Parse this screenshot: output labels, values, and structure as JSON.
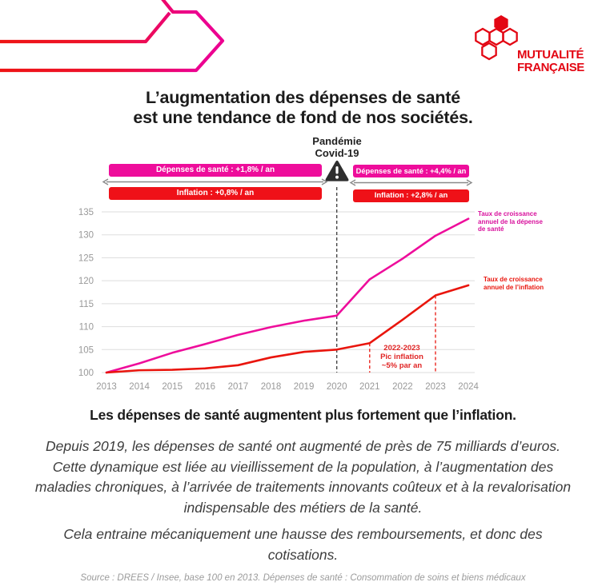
{
  "logo": {
    "line1": "MUTUALITÉ",
    "line2": "FRANÇAISE",
    "brand_color": "#E30613"
  },
  "title": {
    "line1": "L’augmentation des dépenses de santé",
    "line2": "est une tendance de fond de nos sociétés."
  },
  "chart": {
    "pandemic": [
      "Pandémie",
      "Covid-19"
    ],
    "banners": {
      "left_top": "Dépenses de santé : +1,8% / an",
      "left_bottom": "Inflation : +0,8% / an",
      "right_top": "Dépenses de santé : +4,4% / an",
      "right_bottom": "Inflation : +2,8% / an"
    },
    "labels": {
      "sante": [
        "Taux de croissance",
        "annuel de la dépense",
        "de santé"
      ],
      "inflation": [
        "Taux de croissance",
        "annuel de l’inflation"
      ]
    },
    "annotation": [
      "2022-2023",
      "Pic inflation",
      "~5% par an"
    ]
  },
  "chart_data": {
    "type": "line",
    "x": [
      2013,
      2014,
      2015,
      2016,
      2017,
      2018,
      2019,
      2020,
      2021,
      2022,
      2023,
      2024
    ],
    "series": [
      {
        "name": "Taux de croissance annuel de la dépense de santé",
        "color": "#EE0D9B",
        "values": [
          100,
          102,
          104.3,
          106.2,
          108.2,
          109.9,
          111.3,
          112.4,
          120.3,
          124.8,
          129.8,
          133.5
        ]
      },
      {
        "name": "Taux de croissance annuel de l’inflation",
        "color": "#E9150D",
        "values": [
          100,
          100.5,
          100.6,
          100.9,
          101.6,
          103.3,
          104.5,
          105,
          106.4,
          111.5,
          116.8,
          119
        ]
      }
    ],
    "ylim": [
      100,
      135
    ],
    "yticks": [
      100,
      105,
      110,
      115,
      120,
      125,
      130,
      135
    ],
    "grid": true,
    "legend_position": "right",
    "vlines": [
      {
        "x": 2020,
        "type": "full",
        "color": "#3b3b3b",
        "label": "Pandémie Covid-19"
      },
      {
        "x": 2021,
        "type": "to_series",
        "series": 1,
        "color": "#E9150D"
      },
      {
        "x": 2023,
        "type": "to_series",
        "series": 1,
        "color": "#E9150D"
      }
    ],
    "axis_color": "#999999",
    "grid_color": "#dddddd"
  },
  "body": {
    "heading": "Les dépenses de santé augmentent plus fortement que l’inflation.",
    "para1": "Depuis 2019, les dépenses de santé ont augmenté de près de 75 milliards d’euros. Cette dynamique est liée au vieillissement de la population, à l’augmentation des maladies chroniques, à l’arrivée de traitements innovants coûteux et à la revalorisation indispensable des métiers de la santé.",
    "para2": "Cela entraine mécaniquement une hausse des remboursements, et donc des cotisations.",
    "source": "Source : DREES / Insee, base 100 en 2013.  Dépenses de santé : Consommation de soins et biens médicaux"
  }
}
